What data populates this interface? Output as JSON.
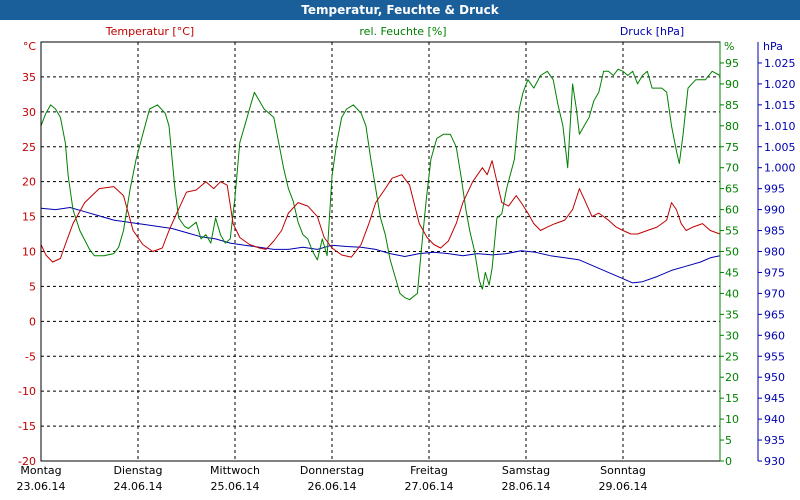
{
  "window": {
    "title": "Temperatur, Feuchte & Druck"
  },
  "colors": {
    "temperature": "#c00000",
    "humidity": "#008000",
    "pressure": "#0000b0",
    "titlebar": "#1a5e9a"
  },
  "chart_data": {
    "type": "line",
    "grid": true,
    "x_labels": [
      {
        "day": "Montag",
        "date": "23.06.14"
      },
      {
        "day": "Dienstag",
        "date": "24.06.14"
      },
      {
        "day": "Mittwoch",
        "date": "25.06.14"
      },
      {
        "day": "Donnerstag",
        "date": "26.06.14"
      },
      {
        "day": "Freitag",
        "date": "27.06.14"
      },
      {
        "day": "Samstag",
        "date": "28.06.14"
      },
      {
        "day": "Sonntag",
        "date": "29.06.14"
      }
    ],
    "xlim": [
      0,
      7
    ],
    "axes": {
      "temperature": {
        "label": "Temperatur [°C]",
        "unit": "°C",
        "ylim": [
          -20,
          40
        ],
        "ticks": [
          -20,
          -15,
          -10,
          -5,
          0,
          5,
          10,
          15,
          20,
          25,
          30,
          35
        ]
      },
      "humidity": {
        "label": "rel. Feuchte [%]",
        "unit": "%",
        "ylim": [
          0,
          100
        ],
        "ticks": [
          0,
          5,
          10,
          15,
          20,
          25,
          30,
          35,
          40,
          45,
          50,
          55,
          60,
          65,
          70,
          75,
          80,
          85,
          90,
          95
        ]
      },
      "pressure": {
        "label": "Druck [hPa]",
        "unit": "hPa",
        "ylim": [
          930,
          1030
        ],
        "ticks": [
          930,
          935,
          940,
          945,
          950,
          955,
          960,
          965,
          970,
          975,
          980,
          985,
          990,
          995,
          1000,
          1005,
          1010,
          1015,
          1020,
          1025
        ],
        "tick_labels": [
          "930",
          "935",
          "940",
          "945",
          "950",
          "955",
          "960",
          "965",
          "970",
          "975",
          "980",
          "985",
          "990",
          "995",
          "1.000",
          "1.005",
          "1.010",
          "1.015",
          "1.020",
          "1.025"
        ]
      }
    },
    "series": [
      {
        "name": "Temperatur [°C]",
        "axis": "temperature",
        "color": "#c00000",
        "points": [
          [
            0,
            11
          ],
          [
            0.05,
            9.5
          ],
          [
            0.12,
            8.5
          ],
          [
            0.2,
            9
          ],
          [
            0.25,
            11
          ],
          [
            0.33,
            14
          ],
          [
            0.45,
            17
          ],
          [
            0.6,
            19
          ],
          [
            0.75,
            19.3
          ],
          [
            0.85,
            18
          ],
          [
            0.95,
            13
          ],
          [
            1.05,
            11
          ],
          [
            1.15,
            10
          ],
          [
            1.25,
            10.5
          ],
          [
            1.32,
            13
          ],
          [
            1.4,
            15.5
          ],
          [
            1.5,
            18.5
          ],
          [
            1.6,
            18.8
          ],
          [
            1.7,
            20
          ],
          [
            1.78,
            19
          ],
          [
            1.85,
            20
          ],
          [
            1.92,
            19.5
          ],
          [
            1.98,
            14
          ],
          [
            2.05,
            12
          ],
          [
            2.15,
            11
          ],
          [
            2.25,
            10.5
          ],
          [
            2.32,
            10.3
          ],
          [
            2.4,
            11.5
          ],
          [
            2.48,
            13
          ],
          [
            2.55,
            15.5
          ],
          [
            2.65,
            17
          ],
          [
            2.75,
            16.5
          ],
          [
            2.85,
            15
          ],
          [
            2.92,
            12
          ],
          [
            3.0,
            10.5
          ],
          [
            3.1,
            9.5
          ],
          [
            3.2,
            9.2
          ],
          [
            3.3,
            11
          ],
          [
            3.38,
            14
          ],
          [
            3.45,
            17
          ],
          [
            3.55,
            19
          ],
          [
            3.62,
            20.5
          ],
          [
            3.72,
            21
          ],
          [
            3.8,
            19.5
          ],
          [
            3.9,
            14
          ],
          [
            3.98,
            12
          ],
          [
            4.05,
            11
          ],
          [
            4.12,
            10.5
          ],
          [
            4.2,
            11.5
          ],
          [
            4.28,
            14
          ],
          [
            4.35,
            17
          ],
          [
            4.45,
            20
          ],
          [
            4.55,
            22
          ],
          [
            4.6,
            21
          ],
          [
            4.65,
            23
          ],
          [
            4.7,
            20
          ],
          [
            4.75,
            17
          ],
          [
            4.82,
            16.5
          ],
          [
            4.9,
            18
          ],
          [
            4.95,
            17
          ],
          [
            5.02,
            15.5
          ],
          [
            5.08,
            14
          ],
          [
            5.15,
            13
          ],
          [
            5.22,
            13.5
          ],
          [
            5.3,
            14
          ],
          [
            5.4,
            14.5
          ],
          [
            5.48,
            16
          ],
          [
            5.55,
            19
          ],
          [
            5.6,
            17.5
          ],
          [
            5.68,
            15
          ],
          [
            5.75,
            15.5
          ],
          [
            5.85,
            14.5
          ],
          [
            5.93,
            13.5
          ],
          [
            6.0,
            13
          ],
          [
            6.08,
            12.5
          ],
          [
            6.15,
            12.5
          ],
          [
            6.25,
            13
          ],
          [
            6.35,
            13.5
          ],
          [
            6.45,
            14.5
          ],
          [
            6.5,
            17
          ],
          [
            6.55,
            16
          ],
          [
            6.6,
            14
          ],
          [
            6.65,
            13
          ],
          [
            6.72,
            13.5
          ],
          [
            6.82,
            14
          ],
          [
            6.9,
            13
          ],
          [
            7.0,
            12.5
          ]
        ]
      },
      {
        "name": "rel. Feuchte [%]",
        "axis": "humidity",
        "color": "#008000",
        "points": [
          [
            0,
            80
          ],
          [
            0.05,
            83
          ],
          [
            0.1,
            85
          ],
          [
            0.15,
            84
          ],
          [
            0.2,
            82
          ],
          [
            0.25,
            76
          ],
          [
            0.28,
            68
          ],
          [
            0.33,
            60
          ],
          [
            0.4,
            55
          ],
          [
            0.5,
            50.5
          ],
          [
            0.55,
            49
          ],
          [
            0.65,
            49
          ],
          [
            0.75,
            49.5
          ],
          [
            0.8,
            51
          ],
          [
            0.85,
            55
          ],
          [
            0.92,
            65
          ],
          [
            0.98,
            72
          ],
          [
            1.05,
            78
          ],
          [
            1.12,
            84
          ],
          [
            1.2,
            85
          ],
          [
            1.28,
            83
          ],
          [
            1.32,
            80
          ],
          [
            1.38,
            65
          ],
          [
            1.42,
            58
          ],
          [
            1.48,
            56
          ],
          [
            1.52,
            55.5
          ],
          [
            1.6,
            57
          ],
          [
            1.65,
            53
          ],
          [
            1.7,
            54
          ],
          [
            1.75,
            52
          ],
          [
            1.8,
            58
          ],
          [
            1.85,
            54
          ],
          [
            1.9,
            52
          ],
          [
            1.95,
            53
          ],
          [
            2.0,
            63
          ],
          [
            2.05,
            76
          ],
          [
            2.1,
            80
          ],
          [
            2.15,
            84
          ],
          [
            2.2,
            88
          ],
          [
            2.25,
            86
          ],
          [
            2.3,
            84
          ],
          [
            2.35,
            83
          ],
          [
            2.4,
            82
          ],
          [
            2.45,
            76
          ],
          [
            2.5,
            70
          ],
          [
            2.55,
            65
          ],
          [
            2.6,
            62
          ],
          [
            2.65,
            57
          ],
          [
            2.7,
            54
          ],
          [
            2.75,
            53
          ],
          [
            2.8,
            50
          ],
          [
            2.85,
            48
          ],
          [
            2.9,
            53
          ],
          [
            2.95,
            49
          ],
          [
            3.0,
            68
          ],
          [
            3.05,
            76
          ],
          [
            3.1,
            82
          ],
          [
            3.15,
            84
          ],
          [
            3.22,
            85
          ],
          [
            3.3,
            83
          ],
          [
            3.35,
            80
          ],
          [
            3.4,
            72
          ],
          [
            3.45,
            65
          ],
          [
            3.5,
            58
          ],
          [
            3.55,
            54
          ],
          [
            3.6,
            48
          ],
          [
            3.65,
            44
          ],
          [
            3.7,
            40
          ],
          [
            3.75,
            39
          ],
          [
            3.8,
            38.5
          ],
          [
            3.88,
            40
          ],
          [
            3.92,
            50
          ],
          [
            3.97,
            62
          ],
          [
            4.02,
            72
          ],
          [
            4.08,
            77
          ],
          [
            4.15,
            78
          ],
          [
            4.22,
            78
          ],
          [
            4.28,
            75
          ],
          [
            4.33,
            68
          ],
          [
            4.38,
            60
          ],
          [
            4.42,
            55
          ],
          [
            4.47,
            50
          ],
          [
            4.52,
            43
          ],
          [
            4.55,
            41
          ],
          [
            4.58,
            45
          ],
          [
            4.62,
            42
          ],
          [
            4.65,
            46
          ],
          [
            4.7,
            58
          ],
          [
            4.75,
            59
          ],
          [
            4.8,
            65
          ],
          [
            4.88,
            72
          ],
          [
            4.93,
            84
          ],
          [
            4.97,
            88
          ],
          [
            5.02,
            91
          ],
          [
            5.08,
            89
          ],
          [
            5.15,
            92
          ],
          [
            5.22,
            93
          ],
          [
            5.28,
            91
          ],
          [
            5.33,
            85
          ],
          [
            5.38,
            80
          ],
          [
            5.43,
            70
          ],
          [
            5.48,
            90
          ],
          [
            5.52,
            84
          ],
          [
            5.55,
            78
          ],
          [
            5.6,
            80
          ],
          [
            5.65,
            82
          ],
          [
            5.7,
            86
          ],
          [
            5.75,
            88
          ],
          [
            5.8,
            93
          ],
          [
            5.85,
            93
          ],
          [
            5.9,
            92
          ],
          [
            5.95,
            93.5
          ],
          [
            6.0,
            93
          ],
          [
            6.05,
            92
          ],
          [
            6.1,
            93
          ],
          [
            6.15,
            90
          ],
          [
            6.2,
            92
          ],
          [
            6.25,
            93
          ],
          [
            6.3,
            89
          ],
          [
            6.35,
            89
          ],
          [
            6.4,
            89
          ],
          [
            6.45,
            88
          ],
          [
            6.5,
            80
          ],
          [
            6.55,
            74
          ],
          [
            6.58,
            71
          ],
          [
            6.62,
            78
          ],
          [
            6.67,
            89
          ],
          [
            6.75,
            91
          ],
          [
            6.85,
            91
          ],
          [
            6.92,
            93
          ],
          [
            7.0,
            92
          ]
        ]
      },
      {
        "name": "Druck [hPa]",
        "axis": "pressure",
        "color": "#0000b0",
        "points": [
          [
            0,
            990.3
          ],
          [
            0.15,
            990
          ],
          [
            0.3,
            990.5
          ],
          [
            0.45,
            989.5
          ],
          [
            0.6,
            988.5
          ],
          [
            0.75,
            987.5
          ],
          [
            0.9,
            987
          ],
          [
            1.05,
            986.5
          ],
          [
            1.2,
            986
          ],
          [
            1.35,
            985.5
          ],
          [
            1.5,
            984.5
          ],
          [
            1.65,
            983.5
          ],
          [
            1.8,
            983
          ],
          [
            1.95,
            982
          ],
          [
            2.1,
            981.5
          ],
          [
            2.25,
            981
          ],
          [
            2.4,
            980.5
          ],
          [
            2.55,
            980.5
          ],
          [
            2.7,
            981
          ],
          [
            2.85,
            980.5
          ],
          [
            3.0,
            981.5
          ],
          [
            3.15,
            981.2
          ],
          [
            3.3,
            981
          ],
          [
            3.45,
            980.5
          ],
          [
            3.6,
            979.5
          ],
          [
            3.75,
            978.8
          ],
          [
            3.9,
            979.5
          ],
          [
            4.05,
            979.8
          ],
          [
            4.2,
            979.5
          ],
          [
            4.35,
            979
          ],
          [
            4.5,
            979.5
          ],
          [
            4.65,
            979.2
          ],
          [
            4.8,
            979.5
          ],
          [
            4.95,
            980.2
          ],
          [
            5.1,
            979.8
          ],
          [
            5.25,
            979
          ],
          [
            5.4,
            978.5
          ],
          [
            5.55,
            978
          ],
          [
            5.7,
            976.5
          ],
          [
            5.85,
            975
          ],
          [
            6.0,
            973.5
          ],
          [
            6.1,
            972.5
          ],
          [
            6.2,
            972.8
          ],
          [
            6.35,
            974
          ],
          [
            6.5,
            975.5
          ],
          [
            6.65,
            976.5
          ],
          [
            6.8,
            977.5
          ],
          [
            6.9,
            978.5
          ],
          [
            7.0,
            979
          ]
        ]
      }
    ]
  }
}
